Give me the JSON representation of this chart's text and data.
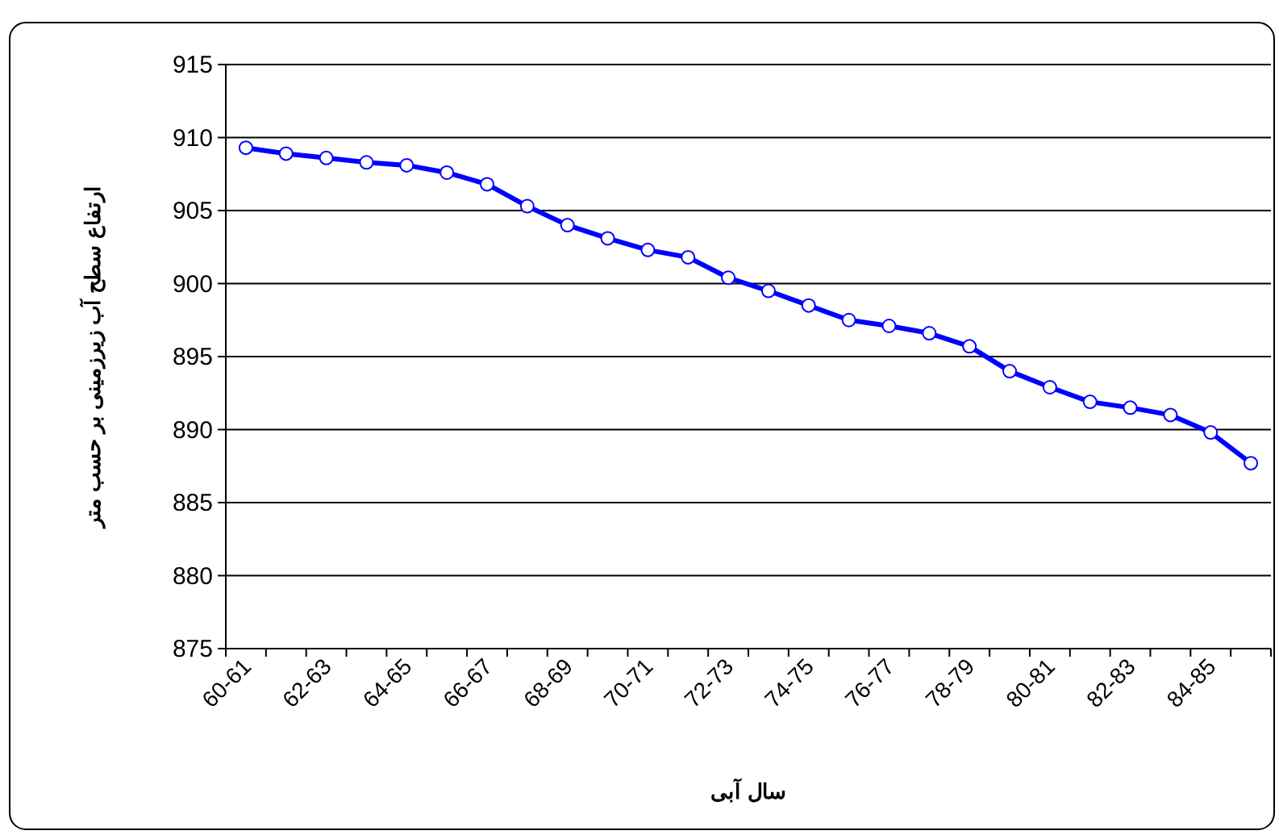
{
  "chart_data": {
    "type": "line",
    "xlabel": "سال آبی",
    "ylabel": "ارتفاع سطح آب زیرزمینی بر حسب متر",
    "categories": [
      "60-61",
      null,
      "62-63",
      null,
      "64-65",
      null,
      "66-67",
      null,
      "68-69",
      null,
      "70-71",
      null,
      "72-73",
      null,
      "74-75",
      null,
      "76-77",
      null,
      "78-79",
      null,
      "80-81",
      null,
      "82-83",
      null,
      "84-85",
      null
    ],
    "series": [
      {
        "color": "#0000ff",
        "values": [
          909.3,
          908.9,
          908.6,
          908.3,
          908.1,
          907.6,
          906.8,
          905.3,
          904.0,
          903.1,
          902.3,
          901.8,
          900.4,
          899.5,
          898.5,
          897.5,
          897.1,
          896.6,
          895.7,
          894.0,
          892.9,
          891.9,
          891.5,
          891.0,
          889.8,
          887.7
        ]
      }
    ],
    "ylim": [
      875,
      915
    ],
    "yticks": [
      875,
      880,
      885,
      890,
      895,
      900,
      905,
      910,
      915
    ],
    "grid": "y",
    "marker": "circle"
  }
}
